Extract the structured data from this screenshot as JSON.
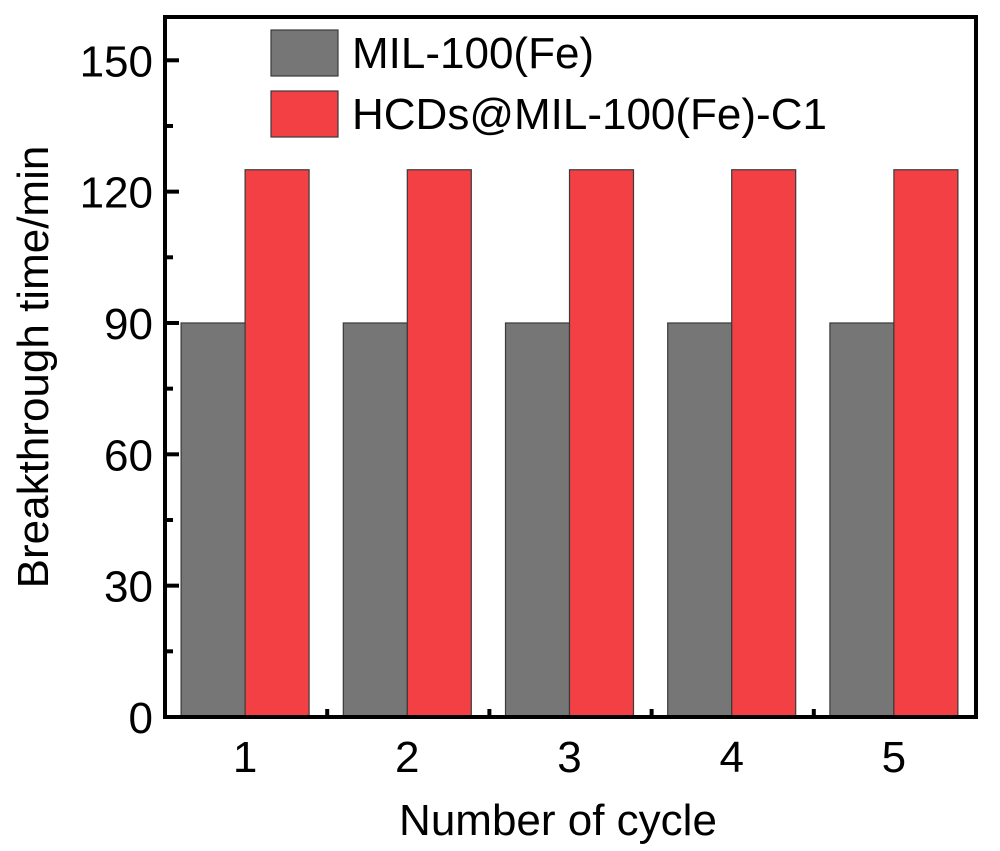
{
  "chart_data": {
    "type": "bar",
    "title": "",
    "xlabel": "Number of cycle",
    "ylabel": "Breakthrough time/min",
    "categories": [
      "1",
      "2",
      "3",
      "4",
      "5"
    ],
    "series": [
      {
        "name": "MIL-100(Fe)",
        "color": "#767676",
        "values": [
          90,
          90,
          90,
          90,
          90
        ]
      },
      {
        "name": "HCDs@MIL-100(Fe)-C1",
        "color": "#f24044",
        "values": [
          125,
          125,
          125,
          125,
          125
        ]
      }
    ],
    "ylim": [
      0,
      160
    ],
    "yticks": [
      0,
      30,
      60,
      90,
      120,
      150
    ],
    "yticks_labels": [
      "0",
      "30",
      "60",
      "90",
      "120",
      "150"
    ],
    "grid": false,
    "legend_position": "top-left"
  }
}
